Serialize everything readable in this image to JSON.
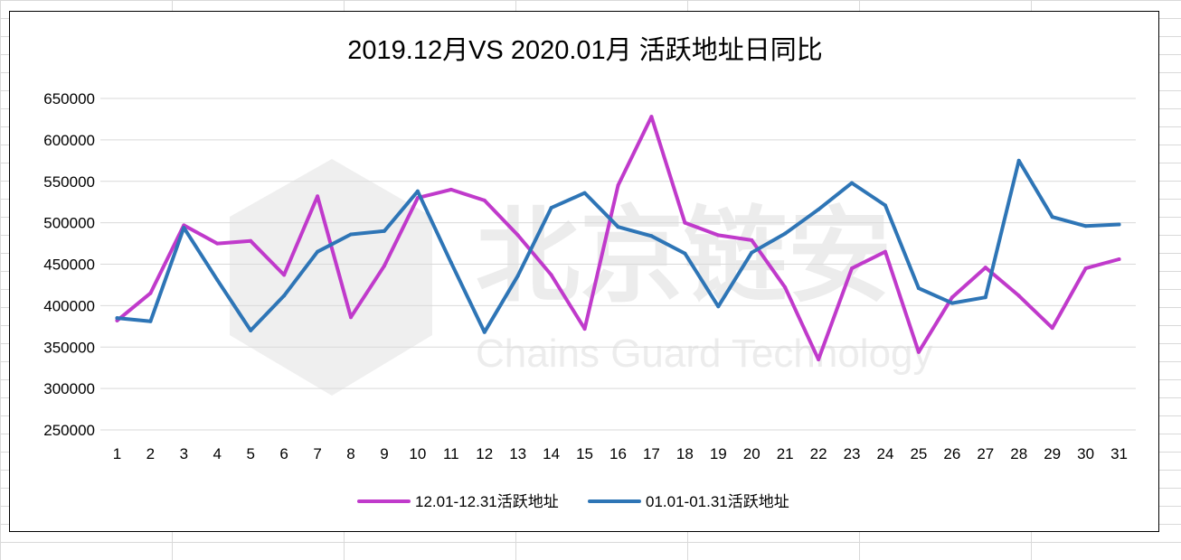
{
  "chart_data": {
    "type": "line",
    "title": "2019.12月VS 2020.01月 活跃地址日同比",
    "xlabel": "",
    "ylabel": "",
    "categories": [
      "1",
      "2",
      "3",
      "4",
      "5",
      "6",
      "7",
      "8",
      "9",
      "10",
      "11",
      "12",
      "13",
      "14",
      "15",
      "16",
      "17",
      "18",
      "19",
      "20",
      "21",
      "22",
      "23",
      "24",
      "25",
      "26",
      "27",
      "28",
      "29",
      "30",
      "31"
    ],
    "yticks": [
      "250000",
      "300000",
      "350000",
      "400000",
      "450000",
      "500000",
      "550000",
      "600000",
      "650000"
    ],
    "ylim": [
      250000,
      650000
    ],
    "grid": "horizontal",
    "legend_position": "bottom",
    "series": [
      {
        "name": "12.01-12.31活跃地址",
        "color": "#C03ACB",
        "values": [
          382000,
          415000,
          497000,
          475000,
          478000,
          437000,
          532000,
          386000,
          448000,
          530000,
          540000,
          527000,
          485000,
          437000,
          372000,
          545000,
          628000,
          500000,
          485000,
          479000,
          422000,
          335000,
          445000,
          465000,
          344000,
          410000,
          446000,
          412000,
          373000,
          445000,
          456000
        ]
      },
      {
        "name": "01.01-01.31活跃地址",
        "color": "#2E75B6",
        "values": [
          385000,
          381000,
          494000,
          431000,
          370000,
          412000,
          465000,
          486000,
          490000,
          538000,
          452000,
          368000,
          436000,
          518000,
          536000,
          495000,
          484000,
          463000,
          399000,
          464000,
          487000,
          516000,
          548000,
          521000,
          421000,
          403000,
          410000,
          575000,
          507000,
          496000,
          498000
        ]
      }
    ],
    "watermark": {
      "text_cn": "北京链安",
      "text_en": "Chains Guard Technology"
    }
  }
}
